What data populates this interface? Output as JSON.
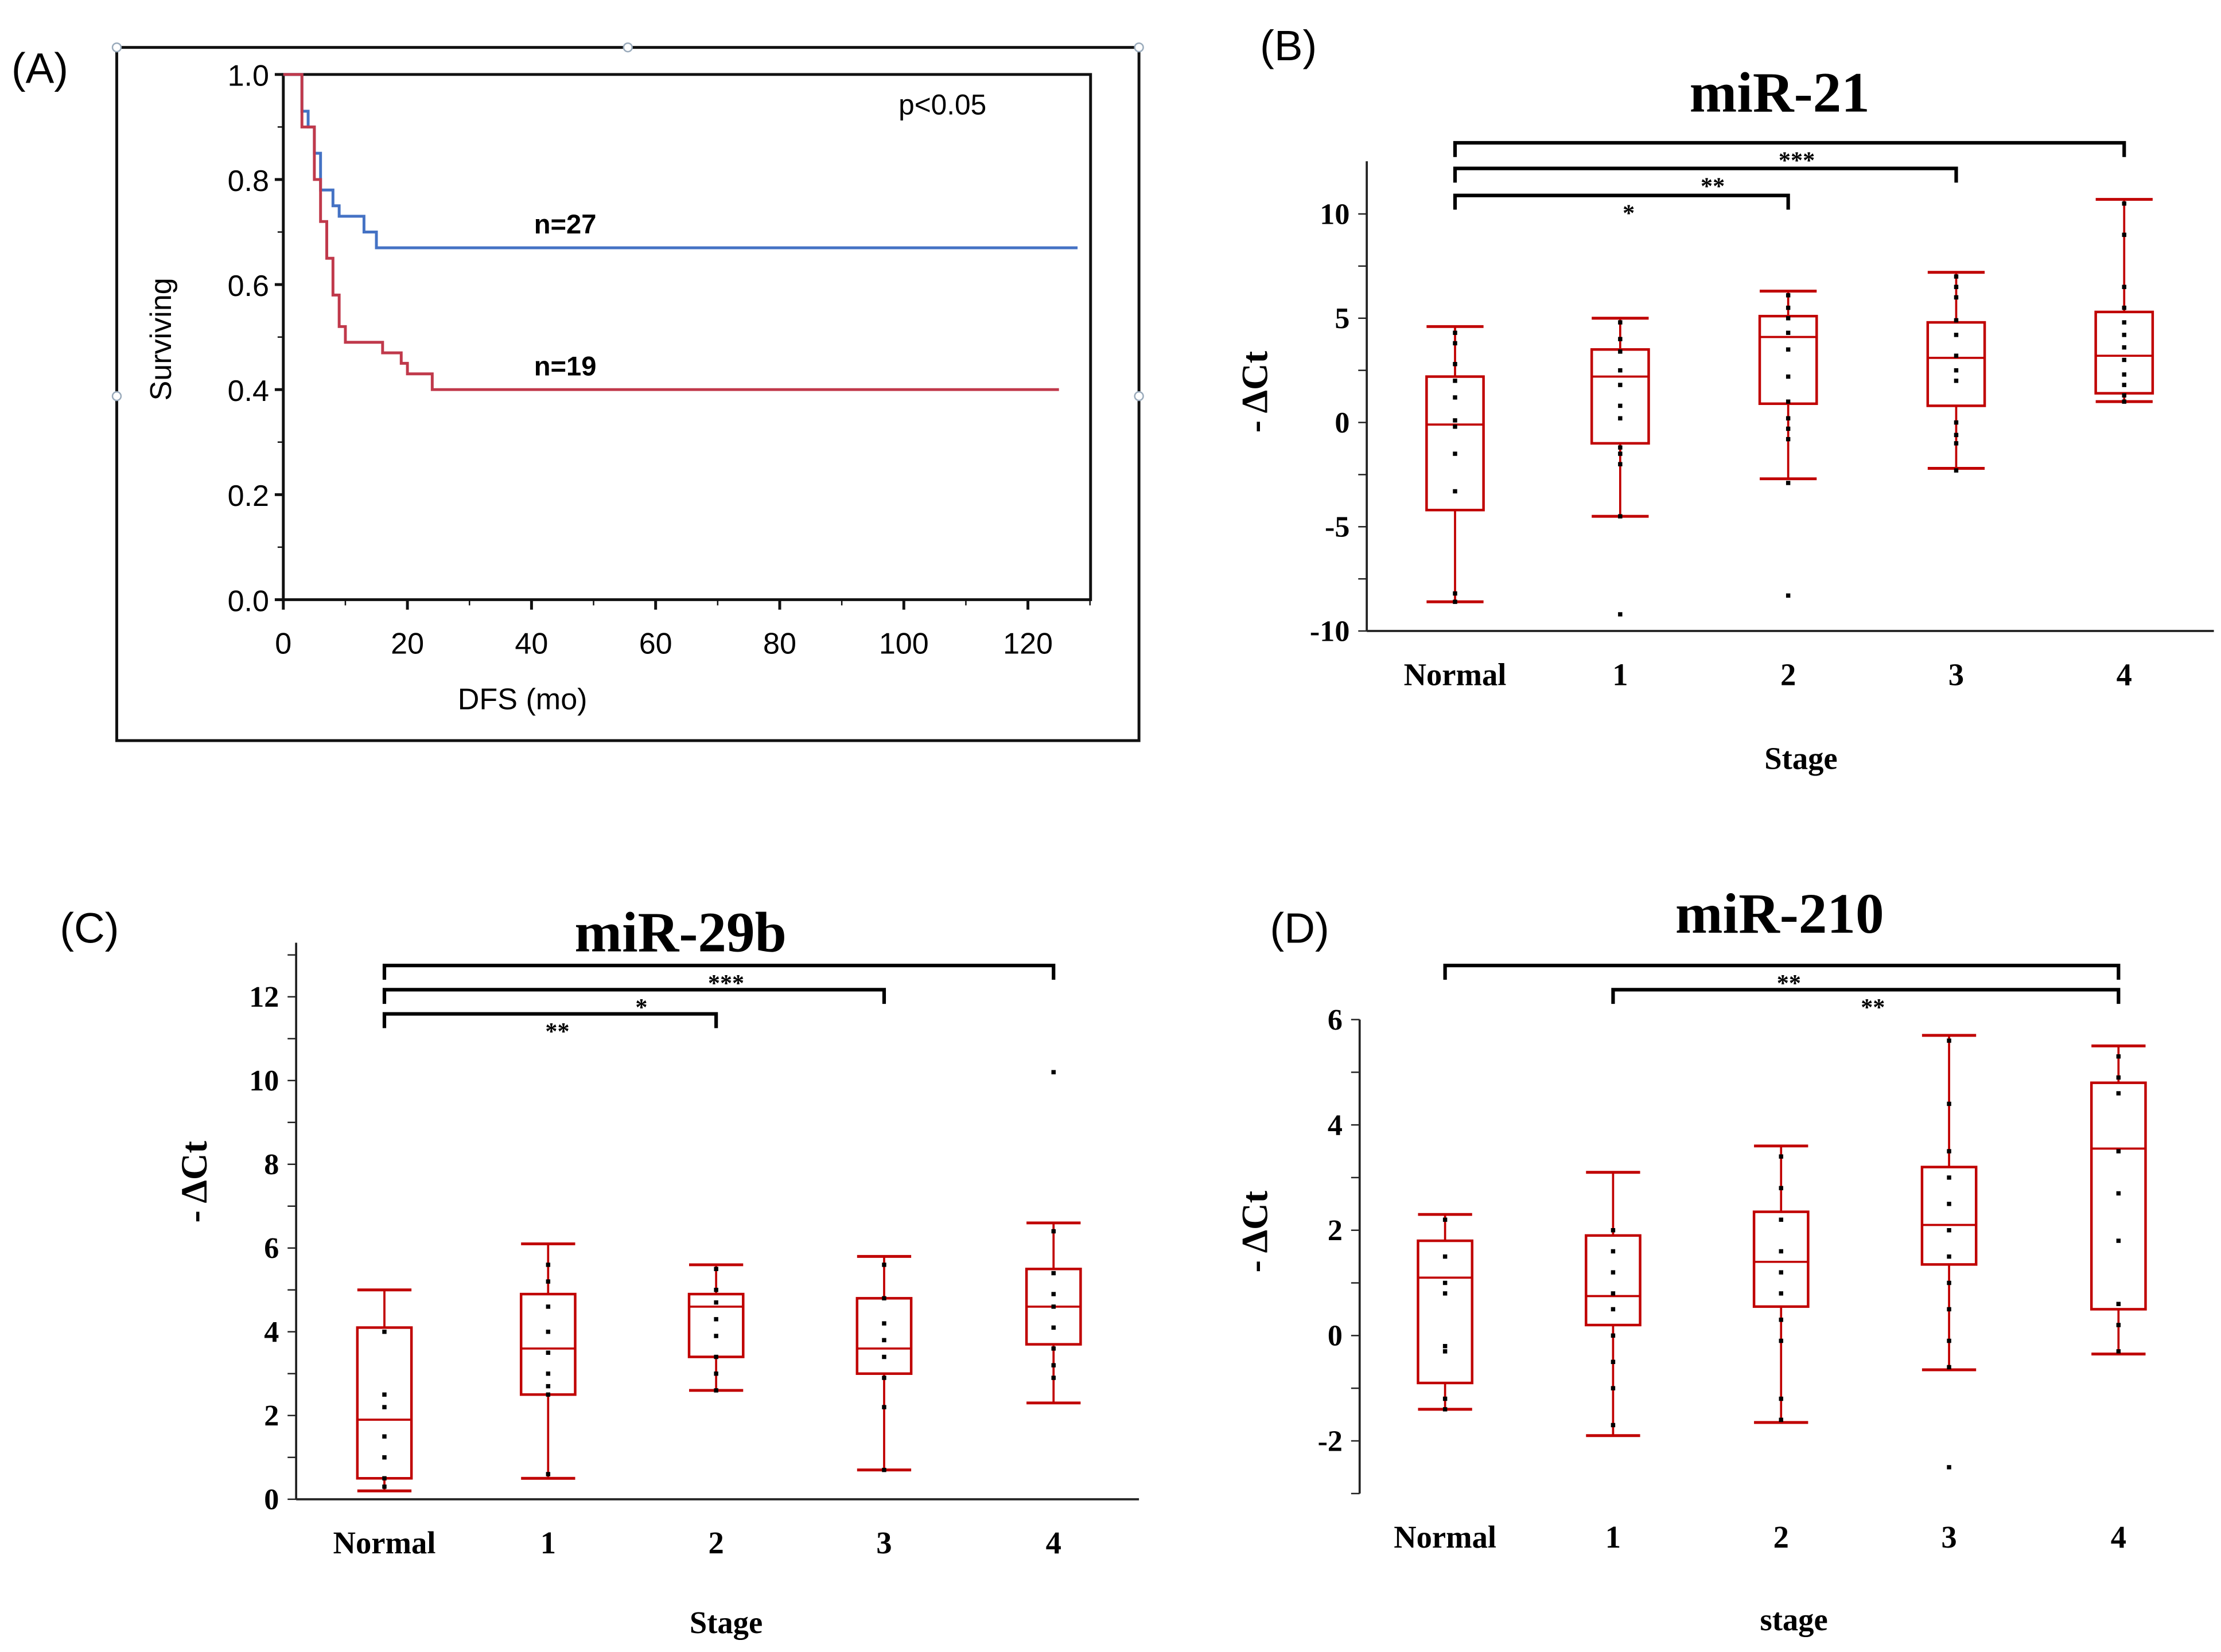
{
  "chart_data": [
    {
      "panel_label": "(A)",
      "type": "line",
      "title": "",
      "xlabel": "DFS (mo)",
      "ylabel": "Surviving",
      "xlim": [
        0,
        130
      ],
      "ylim": [
        0,
        1
      ],
      "xticks": [
        "0",
        "20",
        "40",
        "60",
        "80",
        "100",
        "120"
      ],
      "yticks": [
        "0.0",
        "0.2",
        "0.4",
        "0.6",
        "0.8",
        "1.0"
      ],
      "annotation": "p<0.05",
      "series": [
        {
          "name": "n=27",
          "color": "#4472c4",
          "x": [
            0,
            2.5,
            3,
            4,
            5,
            6,
            7,
            8,
            9,
            12,
            13,
            15,
            128
          ],
          "y": [
            1,
            1,
            0.93,
            0.9,
            0.85,
            0.78,
            0.78,
            0.75,
            0.73,
            0.73,
            0.7,
            0.67,
            0.67
          ]
        },
        {
          "name": "n=19",
          "color": "#c0394b",
          "x": [
            0,
            2.5,
            3,
            5,
            6,
            7,
            8,
            9,
            10,
            15,
            16,
            19,
            20,
            24,
            125
          ],
          "y": [
            1,
            1,
            0.9,
            0.8,
            0.72,
            0.65,
            0.58,
            0.52,
            0.49,
            0.49,
            0.47,
            0.45,
            0.43,
            0.4,
            0.4
          ]
        }
      ]
    },
    {
      "panel_label": "(B)",
      "type": "box",
      "title": "miR-21",
      "xlabel": "Stage",
      "ylabel": "- ΔCt",
      "ylim": [
        -10,
        12
      ],
      "yticks": [
        "-10",
        "-5",
        "0",
        "5",
        "10"
      ],
      "categories": [
        "Normal",
        "1",
        "2",
        "3",
        "4"
      ],
      "color": "#c00000",
      "boxes": [
        {
          "min": -8.6,
          "q1": -4.2,
          "median": -0.1,
          "q3": 2.2,
          "max": 4.6,
          "points": [
            4.3,
            3.8,
            2.8,
            2.0,
            1.2,
            0.1,
            -0.2,
            -1.5,
            -3.3,
            -8.2,
            -8.6
          ],
          "outliers": []
        },
        {
          "min": -4.5,
          "q1": -1.0,
          "median": 2.2,
          "q3": 3.5,
          "max": 5.0,
          "points": [
            4.8,
            4.0,
            3.4,
            2.5,
            1.8,
            0.8,
            0.2,
            -1.2,
            -1.5,
            -2.0,
            -4.5
          ],
          "outliers": [
            -9.2
          ]
        },
        {
          "min": -2.7,
          "q1": 0.9,
          "median": 4.1,
          "q3": 5.1,
          "max": 6.3,
          "points": [
            6.1,
            5.5,
            5.0,
            4.3,
            3.5,
            2.2,
            1.0,
            0.2,
            -0.3,
            -0.8,
            -2.9
          ],
          "outliers": [
            -8.3
          ]
        },
        {
          "min": -2.2,
          "q1": 0.8,
          "median": 3.1,
          "q3": 4.8,
          "max": 7.2,
          "points": [
            7.0,
            6.5,
            6.0,
            4.9,
            4.2,
            3.2,
            2.5,
            2.0,
            0.0,
            -0.6,
            -1.0,
            -2.3
          ],
          "outliers": []
        },
        {
          "min": 1.0,
          "q1": 1.4,
          "median": 3.2,
          "q3": 5.3,
          "max": 10.7,
          "points": [
            10.5,
            9.0,
            6.5,
            5.5,
            4.8,
            4.2,
            3.6,
            3.0,
            2.3,
            1.8,
            1.3,
            1.0
          ],
          "outliers": []
        }
      ],
      "brackets": [
        {
          "from": 0,
          "to": 4,
          "label": "***"
        },
        {
          "from": 0,
          "to": 3,
          "label": "**"
        },
        {
          "from": 0,
          "to": 2,
          "label": "*"
        }
      ]
    },
    {
      "panel_label": "(C)",
      "type": "box",
      "title": "miR-29b",
      "xlabel": "Stage",
      "ylabel": "- ΔCt",
      "ylim": [
        0,
        13
      ],
      "yticks": [
        "0",
        "2",
        "4",
        "6",
        "8",
        "10",
        "12"
      ],
      "categories": [
        "Normal",
        "1",
        "2",
        "3",
        "4"
      ],
      "color": "#c00000",
      "boxes": [
        {
          "min": 0.2,
          "q1": 0.5,
          "median": 1.9,
          "q3": 4.1,
          "max": 5.0,
          "points": [
            4.0,
            2.5,
            2.2,
            1.5,
            1.0,
            0.5,
            0.3
          ],
          "outliers": []
        },
        {
          "min": 0.5,
          "q1": 2.5,
          "median": 3.6,
          "q3": 4.9,
          "max": 6.1,
          "points": [
            5.6,
            5.2,
            4.6,
            4.0,
            3.5,
            3.0,
            2.7,
            2.5,
            0.6
          ],
          "outliers": []
        },
        {
          "min": 2.6,
          "q1": 3.4,
          "median": 4.6,
          "q3": 4.9,
          "max": 5.6,
          "points": [
            5.5,
            5.0,
            4.7,
            4.3,
            3.9,
            3.4,
            3.0,
            2.6
          ],
          "outliers": []
        },
        {
          "min": 0.7,
          "q1": 3.0,
          "median": 3.6,
          "q3": 4.8,
          "max": 5.8,
          "points": [
            5.6,
            4.8,
            4.2,
            3.8,
            3.4,
            2.9,
            2.2,
            0.7
          ],
          "outliers": []
        },
        {
          "min": 2.3,
          "q1": 3.7,
          "median": 4.6,
          "q3": 5.5,
          "max": 6.6,
          "points": [
            6.4,
            5.4,
            4.9,
            4.6,
            4.1,
            3.6,
            3.2,
            2.9
          ],
          "outliers": [
            10.2
          ]
        }
      ],
      "brackets": [
        {
          "from": 0,
          "to": 4,
          "label": "***"
        },
        {
          "from": 0,
          "to": 3,
          "label": "*"
        },
        {
          "from": 0,
          "to": 2,
          "label": "**"
        }
      ]
    },
    {
      "panel_label": "(D)",
      "type": "box",
      "title": "miR-210",
      "xlabel": "stage",
      "ylabel": "- ΔCt",
      "ylim": [
        -3,
        6
      ],
      "yticks": [
        "-2",
        "0",
        "2",
        "4",
        "6"
      ],
      "categories": [
        "Normal",
        "1",
        "2",
        "3",
        "4"
      ],
      "color": "#c00000",
      "boxes": [
        {
          "min": -1.4,
          "q1": -0.9,
          "median": 1.1,
          "q3": 1.8,
          "max": 2.3,
          "points": [
            2.2,
            1.5,
            1.0,
            0.8,
            -0.2,
            -0.3,
            -1.2,
            -1.4
          ],
          "outliers": []
        },
        {
          "min": -1.9,
          "q1": 0.2,
          "median": 0.75,
          "q3": 1.9,
          "max": 3.1,
          "points": [
            2.0,
            1.6,
            1.2,
            0.8,
            0.5,
            0.0,
            -0.5,
            -1.0,
            -1.7
          ],
          "outliers": []
        },
        {
          "min": -1.65,
          "q1": 0.55,
          "median": 1.4,
          "q3": 2.35,
          "max": 3.6,
          "points": [
            3.4,
            2.8,
            2.2,
            1.6,
            1.2,
            0.8,
            0.3,
            -0.1,
            -1.2,
            -1.6
          ],
          "outliers": []
        },
        {
          "min": -0.65,
          "q1": 1.35,
          "median": 2.1,
          "q3": 3.2,
          "max": 5.7,
          "points": [
            5.6,
            4.4,
            3.5,
            3.0,
            2.5,
            2.0,
            1.5,
            1.0,
            0.5,
            -0.1,
            -0.6
          ],
          "outliers": [
            -2.5
          ]
        },
        {
          "min": -0.35,
          "q1": 0.5,
          "median": 3.55,
          "q3": 4.8,
          "max": 5.5,
          "points": [
            5.3,
            4.9,
            4.6,
            3.5,
            2.7,
            1.8,
            0.6,
            0.2,
            -0.3
          ],
          "outliers": []
        }
      ],
      "brackets": [
        {
          "from": 0,
          "to": 4,
          "label": "**"
        },
        {
          "from": 1,
          "to": 4,
          "label": "**"
        }
      ]
    }
  ]
}
